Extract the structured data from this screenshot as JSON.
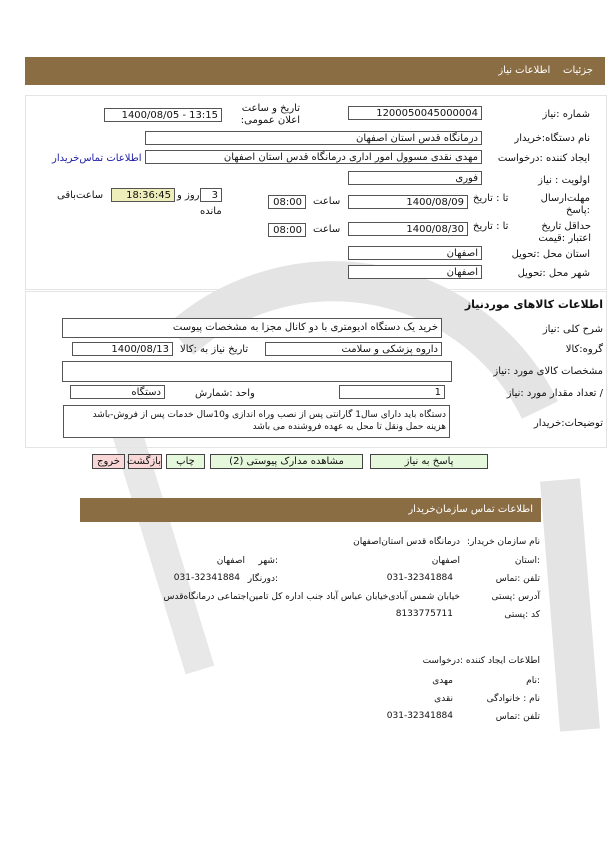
{
  "header": {
    "breadcrumb": [
      "جزئیات",
      "اطلاعات نیاز"
    ]
  },
  "need": {
    "number_label": "شماره :نیاز",
    "number": "1200050045000004",
    "announce_label": "تاریخ و ساعت اعلان عمومی:",
    "announce": "1400/08/05 - 13:15",
    "buyer_label": "نام دستگاه:خریدار",
    "buyer": "درمانگاه قدس استان اصفهان",
    "creator_label": "ایجاد کننده :درخواست",
    "creator": "مهدی نقدی مسوول امور اداری درمانگاه قدس استان اصفهان",
    "contact_link": "اطلاعات تماس‌خریدار",
    "priority_label": "اولویت : نیاز",
    "priority": "فوری",
    "deadline_label": "مهلت‌ارسال :پاسخ",
    "to_date_label": "تا : تاریخ",
    "deadline_date": "1400/08/09",
    "time_label": "ساعت",
    "deadline_time": "08:00",
    "days_left": "3",
    "days_label": "روز و",
    "remaining_label": "مانده",
    "time_left": "18:36:45",
    "time_left_label": "ساعت‌باقی",
    "validity_label": "حداقل تاریخ اعتبار :قیمت",
    "validity_date": "1400/08/30",
    "validity_time": "08:00",
    "province_label": "استان محل :تحویل",
    "province": "اصفهان",
    "city_label": "شهر محل :تحویل",
    "city": "اصفهان"
  },
  "goods": {
    "title": "اطلاعات کالاهای موردنیاز",
    "desc_label": "شرح کلی :نیاز",
    "desc": "خرید یک دستگاه  ادیومتری با دو کانال مجزا به  مشخصات پیوست",
    "group_label": "گروه:کالا",
    "group": "داروه پزشکی و سلامت",
    "need_date_label": "تاریخ نیاز به :کالا",
    "need_date": "1400/08/13",
    "specs_label": "مشخصات کالای مورد :نیاز",
    "specs": "",
    "qty_label": "/ تعداد مقدار مورد :نیاز",
    "qty": "1",
    "unit_label": "واحد :شمارش",
    "unit": "دستگاه",
    "notes_label": "توضیحات:خریدار",
    "notes_1": "دستگاه باید  دارای سال1 گارانتی پس از نصب وراه اندازی و10سال خدمات پس از فروش-باشد",
    "notes_2": "هزینه حمل ونقل تا محل به عهده فروشنده می باشد"
  },
  "buttons": {
    "reply": "پاسخ به نیاز",
    "attachments": "مشاهده مدارک پیوستی (2)",
    "print": "چاپ",
    "back": "بازگشت",
    "exit": "خروج"
  },
  "contact": {
    "title": "اطلاعات  تماس  سازمان‌خریدار",
    "org_label": "نام سازمان خریدار:",
    "org": "درمانگاه قدس استان‌اصفهان",
    "province_label": ":استان",
    "province": "اصفهان",
    "city_label": ":شهر",
    "city": "اصفهان",
    "phone_label": "تلفن :تماس",
    "phone": "031-32341884",
    "fax_label": ":دورنگار",
    "fax": "031-32341884",
    "address_label": "آدرس :پستی",
    "address": "خیابان شمس آبادی‌خیابان عباس آباد جنب اداره کل تامین‌اجتماعی درمانگاه‌قدس",
    "postal_label": "کد :پستی",
    "postal": "8133775711"
  },
  "creator_info": {
    "title": "اطلاعات ایجاد کننده :درخواست",
    "name_label": ":نام",
    "name": "مهدی",
    "family_label": "نام : خانوادگی",
    "family": "نقدی",
    "phone_label": "تلفن :تماس",
    "phone": "031-32341884"
  },
  "colors": {
    "bar": "#8b6d44",
    "green_button": "#e6f8dc",
    "pink_button": "#f9d7d7",
    "timer": "#eeeebb",
    "link": "#1a1aa6"
  }
}
